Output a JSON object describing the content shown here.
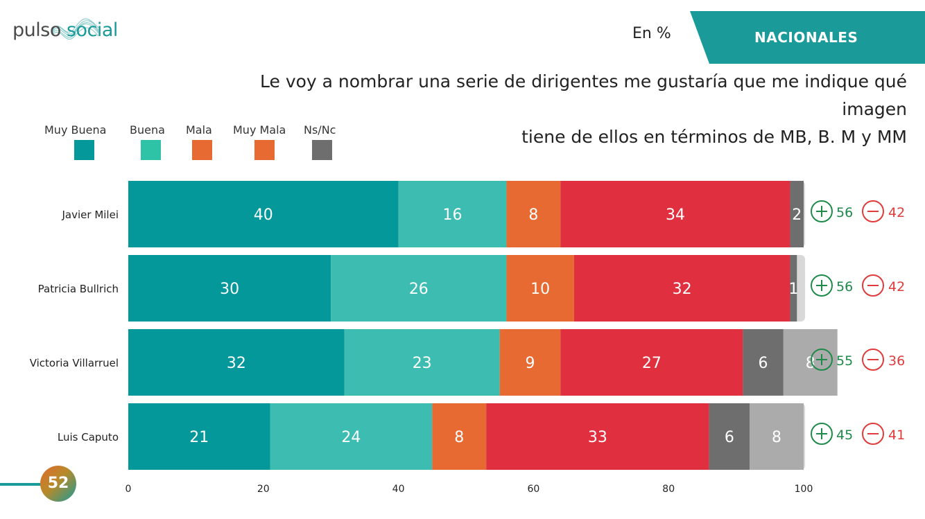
{
  "brand": {
    "word1": "pulso",
    "word2": "social"
  },
  "unit_label": "En %",
  "section_label": "NACIONALES",
  "question_line1": "Le voy a nombrar una serie de dirigentes me gustaría que me indique qué imagen",
  "question_line2": "tiene de ellos en términos de MB, B. M y MM",
  "page_number": "52",
  "colors": {
    "accent": "#1a9a98",
    "positive": "#1e8a4a",
    "negative": "#e03a3a"
  },
  "legend": [
    {
      "label": "Muy Buena",
      "color": "#05989b"
    },
    {
      "label": "Buena",
      "color": "#2ec3a6"
    },
    {
      "label": "Mala",
      "color": "#e86a33"
    },
    {
      "label": "Muy Mala",
      "color": "#e86a33"
    },
    {
      "label": "Ns/Nc",
      "color": "#6e6e6e"
    }
  ],
  "chart_data": {
    "type": "bar",
    "orientation": "horizontal",
    "stacked": true,
    "categories": [
      "Javier Milei",
      "Patricia Bullrich",
      "Victoria Villarruel",
      "Luis Caputo"
    ],
    "series": [
      {
        "name": "Muy Buena",
        "color": "#05989b",
        "values": [
          40,
          30,
          32,
          21
        ]
      },
      {
        "name": "Buena",
        "color": "#3dbdb2",
        "values": [
          16,
          26,
          23,
          24
        ]
      },
      {
        "name": "Mala",
        "color": "#e86a33",
        "values": [
          8,
          10,
          9,
          8
        ]
      },
      {
        "name": "Muy Mala",
        "color": "#e0303f",
        "values": [
          34,
          32,
          27,
          33
        ]
      },
      {
        "name": "Ns/Nc",
        "color": "#6e6e6e",
        "values": [
          2,
          1,
          6,
          6
        ]
      },
      {
        "color": "#ababab",
        "values": [
          null,
          null,
          8,
          8
        ]
      }
    ],
    "positive_totals": [
      "56",
      "56",
      "55",
      "45"
    ],
    "negative_totals": [
      "42",
      "42",
      "36",
      "41"
    ],
    "xlim": [
      0,
      100
    ],
    "x_ticks": [
      "0",
      "20",
      "40",
      "60",
      "80",
      "100"
    ],
    "grid": false,
    "legend_position": "top-left"
  }
}
